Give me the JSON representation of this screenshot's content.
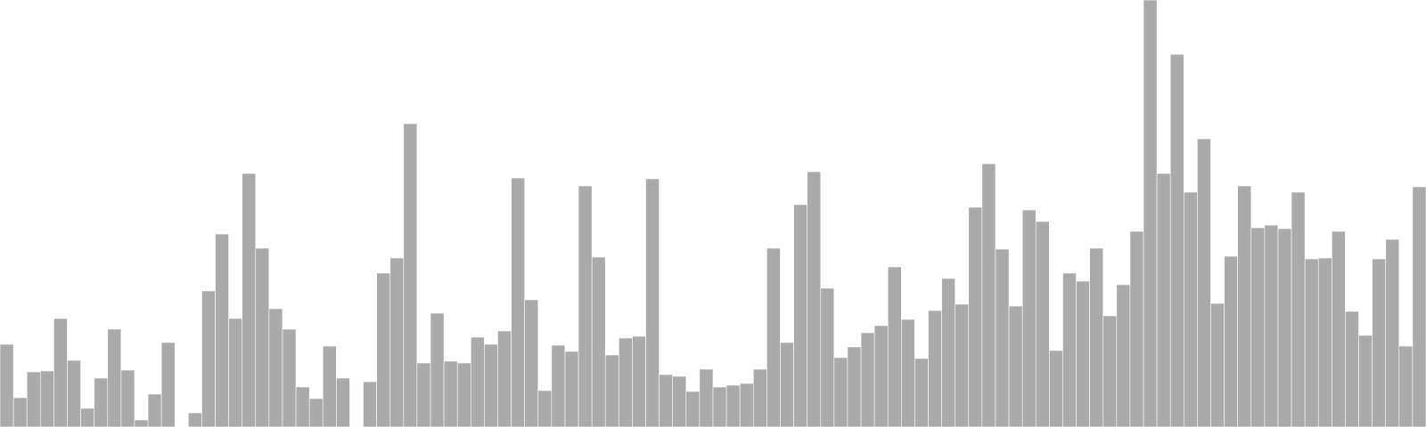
{
  "chart_data": {
    "type": "bar",
    "title": "",
    "xlabel": "",
    "ylabel": "",
    "grid": false,
    "ylim": [
      0,
      480
    ],
    "bar_color": "#aaaaaa",
    "bar_edge_color": "#ffffff",
    "values": [
      93,
      33,
      62,
      63,
      122,
      75,
      21,
      55,
      110,
      64,
      8,
      37,
      95,
      0,
      16,
      153,
      217,
      122,
      285,
      201,
      133,
      110,
      45,
      32,
      91,
      55,
      0,
      51,
      173,
      190,
      341,
      72,
      128,
      74,
      72,
      101,
      93,
      108,
      280,
      143,
      41,
      92,
      85,
      271,
      191,
      81,
      100,
      102,
      279,
      59,
      57,
      40,
      65,
      45,
      47,
      49,
      65,
      201,
      95,
      250,
      287,
      156,
      78,
      90,
      106,
      114,
      180,
      121,
      77,
      131,
      167,
      138,
      247,
      296,
      200,
      136,
      244,
      231,
      86,
      173,
      164,
      201,
      125,
      160,
      220,
      480,
      285,
      419,
      264,
      324,
      139,
      192,
      271,
      224,
      227,
      223,
      264,
      189,
      190,
      220,
      130,
      103,
      189,
      211,
      91,
      270
    ]
  }
}
